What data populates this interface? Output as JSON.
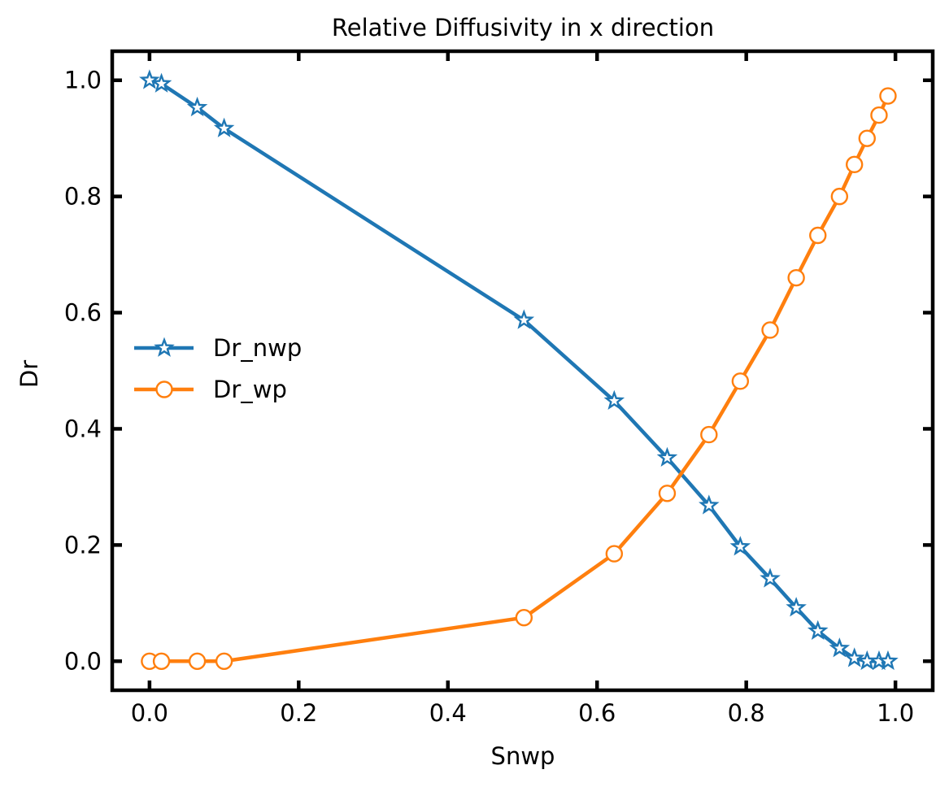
{
  "chart_data": {
    "type": "line",
    "title": "Relative Diffusivity in x direction",
    "xlabel": "Snwp",
    "ylabel": "Dr",
    "xlim": [
      -0.05,
      1.05
    ],
    "ylim": [
      -0.05,
      1.05
    ],
    "xticks": [
      0.0,
      0.2,
      0.4,
      0.6,
      0.8,
      1.0
    ],
    "xtick_labels": [
      "0.0",
      "0.2",
      "0.4",
      "0.6",
      "0.8",
      "1.0"
    ],
    "yticks": [
      0.0,
      0.2,
      0.4,
      0.6,
      0.8,
      1.0
    ],
    "ytick_labels": [
      "0.0",
      "0.2",
      "0.4",
      "0.6",
      "0.8",
      "1.0"
    ],
    "grid": false,
    "legend_position": "center-left",
    "series": [
      {
        "name": "Dr_nwp",
        "color": "#1f77b4",
        "marker": "star",
        "x": [
          0.0,
          0.016,
          0.064,
          0.1,
          0.502,
          0.623,
          0.694,
          0.75,
          0.792,
          0.832,
          0.867,
          0.896,
          0.925,
          0.945,
          0.962,
          0.978,
          0.99
        ],
        "y": [
          1.0,
          0.994,
          0.953,
          0.917,
          0.587,
          0.448,
          0.35,
          0.268,
          0.197,
          0.142,
          0.092,
          0.052,
          0.022,
          0.005,
          0.0,
          0.0,
          0.0
        ]
      },
      {
        "name": "Dr_wp",
        "color": "#ff7f0e",
        "marker": "circle",
        "x": [
          0.0,
          0.016,
          0.064,
          0.1,
          0.502,
          0.623,
          0.694,
          0.75,
          0.792,
          0.832,
          0.867,
          0.896,
          0.925,
          0.945,
          0.962,
          0.978,
          0.99
        ],
        "y": [
          0.0,
          0.0,
          0.0,
          0.0,
          0.075,
          0.185,
          0.289,
          0.39,
          0.482,
          0.57,
          0.66,
          0.733,
          0.8,
          0.855,
          0.9,
          0.94,
          0.973
        ]
      }
    ]
  }
}
